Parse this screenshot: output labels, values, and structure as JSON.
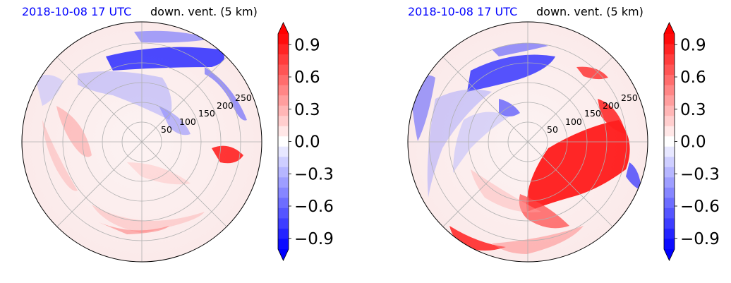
{
  "panels": [
    {
      "title_left": "2018-10-08 17 UTC",
      "title_right": "down. vent. (5 km)",
      "ring_labels": [
        "50",
        "100",
        "150",
        "200",
        "250"
      ],
      "colorbar_ticks": [
        "0.9",
        "0.6",
        "0.3",
        "0.0",
        "−0.3",
        "−0.6",
        "−0.9"
      ]
    },
    {
      "title_left": "2018-10-08 17 UTC",
      "title_right": "down. vent. (5 km)",
      "ring_labels": [
        "50",
        "100",
        "150",
        "200",
        "250"
      ],
      "colorbar_ticks": [
        "0.9",
        "0.6",
        "0.3",
        "0.0",
        "−0.3",
        "−0.6",
        "−0.9"
      ]
    }
  ],
  "chart_data": [
    {
      "type": "heatmap",
      "projection": "polar",
      "title": "2018-10-08 17 UTC   down. vent. (5 km)",
      "radial_ticks": [
        50,
        100,
        150,
        200,
        250
      ],
      "angular_grid_deg": 45,
      "grid": true,
      "colormap": "bwr",
      "colorbar": {
        "min": -1.0,
        "max": 1.0,
        "ticks": [
          0.9,
          0.6,
          0.3,
          0.0,
          -0.3,
          -0.6,
          -0.9
        ],
        "extend": "both",
        "levels": 21
      },
      "colors": {
        "negative": "#0000ff",
        "neutral": "#ffffff",
        "positive": "#ff0000"
      }
    },
    {
      "type": "heatmap",
      "projection": "polar",
      "title": "2018-10-08 17 UTC   down. vent. (5 km)",
      "radial_ticks": [
        50,
        100,
        150,
        200,
        250
      ],
      "angular_grid_deg": 45,
      "grid": true,
      "colormap": "bwr",
      "colorbar": {
        "min": -1.0,
        "max": 1.0,
        "ticks": [
          0.9,
          0.6,
          0.3,
          0.0,
          -0.3,
          -0.6,
          -0.9
        ],
        "extend": "both",
        "levels": 21
      },
      "colors": {
        "negative": "#0000ff",
        "neutral": "#ffffff",
        "positive": "#ff0000"
      }
    }
  ]
}
